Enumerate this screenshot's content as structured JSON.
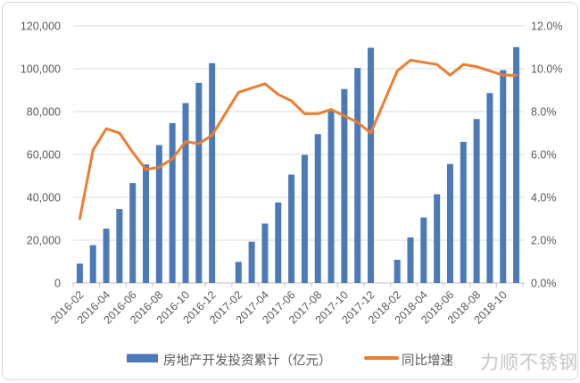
{
  "watermark": "力顺不锈钢",
  "colors": {
    "bar": "#4C7AB8",
    "line": "#ED7D31",
    "axis_text": "#595959",
    "gridline": "#DCDCDC",
    "axis_line": "#BFBFBF",
    "legend_text": "#595959",
    "watermark_text": "#C6C6C6",
    "card_border": "#DADADA",
    "background": "#FFFFFF"
  },
  "chart_data": {
    "type": "bar",
    "title": "",
    "xlabel": "",
    "ylabel_left": "",
    "ylabel_right": "",
    "grid": true,
    "legend_position": "bottom",
    "categories": [
      "2016-02",
      "2016-03",
      "2016-04",
      "2016-05",
      "2016-06",
      "2016-07",
      "2016-08",
      "2016-09",
      "2016-10",
      "2016-11",
      "2016-12",
      "2017-01",
      "2017-02",
      "2017-03",
      "2017-04",
      "2017-05",
      "2017-06",
      "2017-07",
      "2017-08",
      "2017-09",
      "2017-10",
      "2017-11",
      "2017-12",
      "2018-01",
      "2018-02",
      "2018-03",
      "2018-04",
      "2018-05",
      "2018-06",
      "2018-07",
      "2018-08",
      "2018-09",
      "2018-10",
      "2018-11"
    ],
    "x_tick_labels": [
      "2016-02",
      "2016-04",
      "2016-06",
      "2016-08",
      "2016-10",
      "2016-12",
      "2017-02",
      "2017-04",
      "2017-06",
      "2017-08",
      "2017-10",
      "2017-12",
      "2018-02",
      "2018-04",
      "2018-06",
      "2018-08",
      "2018-10"
    ],
    "series": [
      {
        "name": "房地产开发投资累计（亿元）",
        "type": "bar",
        "axis": "left",
        "values": [
          9052,
          17677,
          25376,
          34564,
          46631,
          55361,
          64387,
          74598,
          83975,
          93387,
          102581,
          null,
          9854,
          19292,
          27732,
          37595,
          50610,
          59761,
          69494,
          80644,
          90544,
          100387,
          109799,
          null,
          10831,
          21291,
          30592,
          41420,
          55531,
          65886,
          76519,
          88665,
          99325,
          110083
        ]
      },
      {
        "name": "同比增速",
        "type": "line",
        "axis": "right",
        "values": [
          3.0,
          6.2,
          7.2,
          7.0,
          6.1,
          5.3,
          5.4,
          5.8,
          6.6,
          6.5,
          6.9,
          null,
          8.9,
          9.1,
          9.3,
          8.8,
          8.5,
          7.9,
          7.9,
          8.1,
          7.8,
          7.5,
          7.0,
          null,
          9.9,
          10.4,
          10.3,
          10.2,
          9.7,
          10.2,
          10.1,
          9.9,
          9.7,
          9.7
        ]
      }
    ],
    "left_axis": {
      "min": 0,
      "max": 120000,
      "step": 20000,
      "tick_labels": [
        "0",
        "20,000",
        "40,000",
        "60,000",
        "80,000",
        "100,000",
        "120,000"
      ]
    },
    "right_axis": {
      "min": 0,
      "max": 12,
      "step": 2,
      "tick_labels": [
        "0.0%",
        "2.0%",
        "4.0%",
        "6.0%",
        "8.0%",
        "10.0%",
        "12.0%"
      ]
    }
  }
}
